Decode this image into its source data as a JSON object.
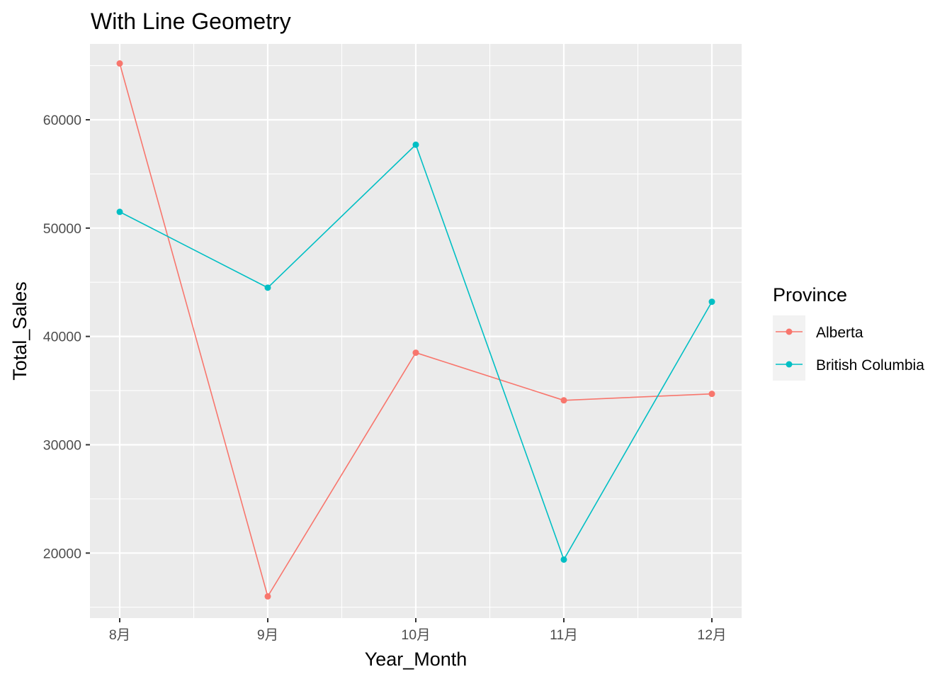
{
  "chart_data": {
    "type": "line",
    "title": "With Line Geometry",
    "xlabel": "Year_Month",
    "ylabel": "Total_Sales",
    "categories": [
      "8月",
      "9月",
      "10月",
      "11月",
      "12月"
    ],
    "ylim": [
      14000,
      67000
    ],
    "yticks": [
      20000,
      30000,
      40000,
      50000,
      60000
    ],
    "ytick_labels": [
      "20000",
      "30000",
      "40000",
      "50000",
      "60000"
    ],
    "grid": true,
    "panel_background": "#ebebeb",
    "grid_color": "#ffffff",
    "legend": {
      "title": "Province",
      "position": "right"
    },
    "series": [
      {
        "name": "Alberta",
        "color": "#F8766D",
        "values": [
          65200,
          16000,
          38500,
          34100,
          34700
        ]
      },
      {
        "name": "British Columbia",
        "color": "#00BFC4",
        "values": [
          51500,
          44500,
          57700,
          19400,
          43200
        ]
      }
    ]
  }
}
